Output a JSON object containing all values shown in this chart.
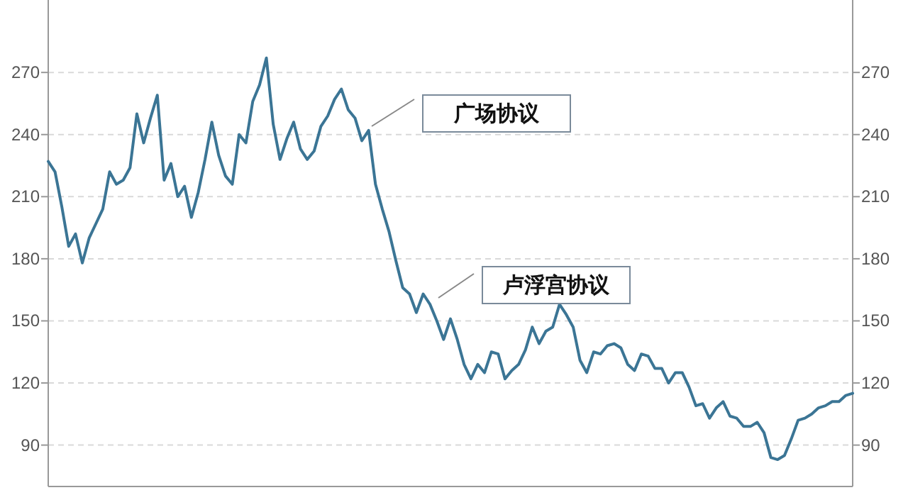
{
  "chart_data": {
    "type": "line",
    "categories": [
      null,
      null,
      null,
      null,
      null,
      null,
      null,
      null,
      null,
      null,
      null,
      null,
      null,
      null,
      null,
      null,
      null,
      null,
      null,
      null,
      null,
      null,
      null,
      null,
      null,
      null,
      null,
      null,
      null,
      null,
      null,
      null,
      null,
      null,
      null,
      null,
      null,
      null,
      null,
      null,
      null,
      null,
      null,
      null,
      null,
      null,
      null,
      null,
      null,
      null,
      null,
      null,
      null,
      null,
      null,
      null,
      null,
      null,
      null,
      null,
      null,
      null,
      null,
      null,
      null,
      null,
      null,
      null,
      null,
      null,
      null,
      null,
      null,
      null,
      null,
      null,
      null,
      null,
      null,
      null,
      null,
      null,
      null,
      null,
      null,
      null,
      null,
      null,
      null,
      null,
      null,
      null,
      null,
      null,
      null,
      null,
      null,
      null,
      null,
      null,
      null,
      null,
      null,
      null,
      null,
      null,
      null,
      null,
      null,
      null,
      null,
      null,
      null,
      null,
      null,
      null,
      null,
      null,
      null
    ],
    "series": [
      {
        "color": "#3b7595",
        "values": [
          227,
          222,
          205,
          186,
          192,
          178,
          190,
          197,
          204,
          222,
          216,
          218,
          224,
          250,
          236,
          248,
          259,
          218,
          226,
          210,
          215,
          200,
          212,
          228,
          246,
          230,
          220,
          216,
          240,
          236,
          256,
          264,
          277,
          245,
          228,
          238,
          246,
          233,
          228,
          232,
          244,
          249,
          257,
          262,
          252,
          248,
          237,
          242,
          216,
          204,
          193,
          179,
          166,
          163,
          154,
          163,
          158,
          150,
          141,
          151,
          141,
          129,
          122,
          129,
          125,
          135,
          134,
          122,
          126,
          129,
          136,
          147,
          139,
          145,
          147,
          158,
          153,
          147,
          131,
          125,
          135,
          134,
          138,
          139,
          137,
          129,
          126,
          134,
          133,
          127,
          127,
          120,
          125,
          125,
          118,
          109,
          110,
          103,
          108,
          111,
          104,
          103,
          99,
          99,
          101,
          96,
          84,
          83,
          85,
          93,
          102,
          103,
          105,
          108,
          109,
          111,
          111,
          114,
          115
        ]
      }
    ],
    "ylim": [
      70,
      305
    ],
    "yticks": [
      90,
      120,
      150,
      180,
      210,
      240,
      270
    ],
    "y2lim": [
      70,
      305
    ],
    "y2ticks": [
      90,
      120,
      150,
      180,
      210,
      240,
      270
    ],
    "grid": "y",
    "annotations": [
      "广场协议",
      "卢浮宫协议"
    ]
  }
}
